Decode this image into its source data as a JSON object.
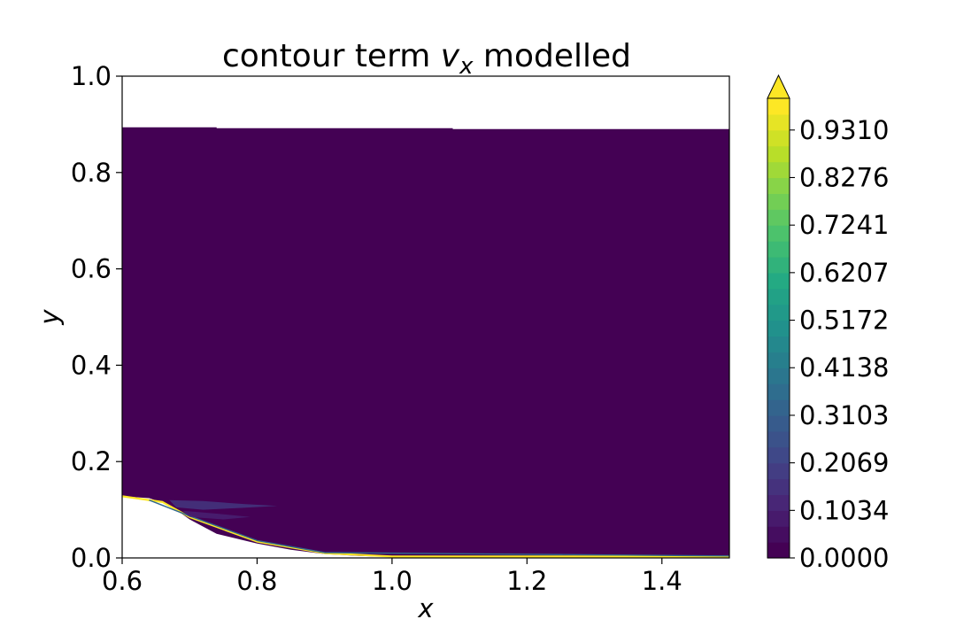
{
  "chart_data": {
    "type": "contour",
    "title": {
      "prefix": "contour term ",
      "symbol": "v",
      "subscript": "x",
      "suffix": " modelled"
    },
    "xlabel": "x",
    "ylabel": "y",
    "xlim": [
      0.6,
      1.5
    ],
    "ylim": [
      0.0,
      1.0
    ],
    "xticks": [
      0.6,
      0.8,
      1.0,
      1.2,
      1.4
    ],
    "xtick_labels": [
      "0.6",
      "0.8",
      "1.0",
      "1.2",
      "1.4"
    ],
    "yticks": [
      0.0,
      0.2,
      0.4,
      0.6,
      0.8,
      1.0
    ],
    "ytick_labels": [
      "0.0",
      "0.2",
      "0.4",
      "0.6",
      "0.8",
      "1.0"
    ],
    "grid": false,
    "colormap": "viridis",
    "colorbar": {
      "range": [
        0.0,
        1.0
      ],
      "extend": "max",
      "ticks": [
        0.0,
        0.1034,
        0.2069,
        0.3103,
        0.4138,
        0.5172,
        0.6207,
        0.7241,
        0.8276,
        0.931
      ],
      "tick_labels": [
        "0.0000",
        "0.1034",
        "0.2069",
        "0.3103",
        "0.4138",
        "0.5172",
        "0.6207",
        "0.7241",
        "0.8276",
        "0.9310"
      ],
      "levels": 29
    },
    "domain": {
      "top_boundary": [
        [
          0.6,
          0.894
        ],
        [
          0.74,
          0.894
        ],
        [
          0.74,
          0.892
        ],
        [
          1.09,
          0.892
        ],
        [
          1.09,
          0.89
        ],
        [
          1.5,
          0.89
        ]
      ],
      "bottom_boundary": [
        [
          0.6,
          0.128
        ],
        [
          0.64,
          0.124
        ],
        [
          0.67,
          0.11
        ],
        [
          0.7,
          0.08
        ],
        [
          0.74,
          0.05
        ],
        [
          0.8,
          0.03
        ],
        [
          0.85,
          0.017
        ],
        [
          0.9,
          0.008
        ],
        [
          0.95,
          0.004
        ],
        [
          1.0,
          0.002
        ],
        [
          1.5,
          0.002
        ]
      ],
      "background_value": 0.0,
      "background_color": "#440154"
    },
    "features": [
      {
        "name": "wall-streak-high",
        "value": 1.0,
        "color": "#fde725",
        "path": [
          [
            0.6,
            0.128
          ],
          [
            0.66,
            0.116
          ],
          [
            0.7,
            0.085
          ],
          [
            0.8,
            0.034
          ],
          [
            0.9,
            0.01
          ],
          [
            1.0,
            0.003
          ],
          [
            1.5,
            0.003
          ]
        ]
      },
      {
        "name": "wall-streak-mid",
        "value": 0.45,
        "color": "#31688e",
        "path": [
          [
            0.64,
            0.12
          ],
          [
            0.7,
            0.087
          ],
          [
            0.8,
            0.036
          ],
          [
            0.9,
            0.011
          ],
          [
            1.5,
            0.004
          ]
        ]
      },
      {
        "name": "wake-blob",
        "value": 0.18,
        "color": "#433d84",
        "path": [
          [
            0.67,
            0.12
          ],
          [
            0.72,
            0.118
          ],
          [
            0.78,
            0.112
          ],
          [
            0.83,
            0.108
          ],
          [
            0.78,
            0.104
          ],
          [
            0.72,
            0.1
          ],
          [
            0.68,
            0.105
          ]
        ]
      },
      {
        "name": "wake-tail",
        "value": 0.12,
        "color": "#482576",
        "path": [
          [
            0.69,
            0.098
          ],
          [
            0.74,
            0.092
          ],
          [
            0.79,
            0.085
          ],
          [
            0.75,
            0.08
          ],
          [
            0.7,
            0.085
          ]
        ]
      }
    ]
  }
}
